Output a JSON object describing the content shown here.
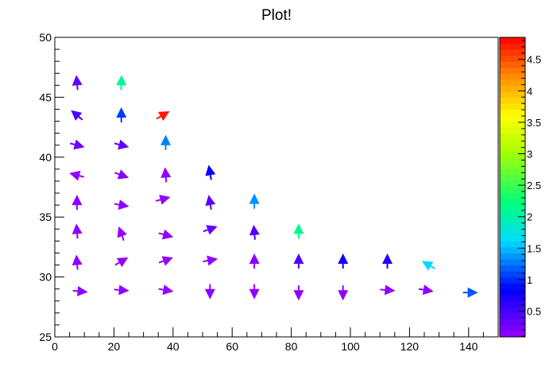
{
  "chart_data": {
    "type": "vector-field",
    "title": "Plot!",
    "xlabel": "",
    "ylabel": "",
    "xlim": [
      0,
      150
    ],
    "ylim": [
      25,
      50
    ],
    "x_ticks": [
      0,
      20,
      40,
      60,
      80,
      100,
      120,
      140
    ],
    "y_ticks": [
      25,
      30,
      35,
      40,
      45,
      50
    ],
    "colorbar": {
      "palette": "rainbow",
      "range": [
        0.09,
        4.85
      ],
      "ticks": [
        0.5,
        1,
        1.5,
        2,
        2.5,
        3,
        3.5,
        4,
        4.5
      ],
      "tick_labels": [
        "0.5",
        "1",
        "1.5",
        "2",
        "2.5",
        "3",
        "3.5",
        "4",
        "4.5"
      ]
    },
    "grid": false,
    "arrows": [
      {
        "x": 7.5,
        "y": 46.2,
        "angle": 95,
        "value": 0.35
      },
      {
        "x": 22.5,
        "y": 46.2,
        "angle": 88,
        "value": 2.1
      },
      {
        "x": 7.5,
        "y": 43.5,
        "angle": 140,
        "value": 0.45
      },
      {
        "x": 22.5,
        "y": 43.5,
        "angle": 90,
        "value": 1.05
      },
      {
        "x": 36.5,
        "y": 43.5,
        "angle": 30,
        "value": 4.75
      },
      {
        "x": 7.5,
        "y": 41.0,
        "angle": -15,
        "value": 0.3
      },
      {
        "x": 22.5,
        "y": 41.0,
        "angle": -15,
        "value": 0.35
      },
      {
        "x": 37.5,
        "y": 41.2,
        "angle": 90,
        "value": 1.3
      },
      {
        "x": 7.5,
        "y": 38.5,
        "angle": 165,
        "value": 0.1
      },
      {
        "x": 22.5,
        "y": 38.5,
        "angle": -20,
        "value": 0.15
      },
      {
        "x": 37.5,
        "y": 38.5,
        "angle": 95,
        "value": 0.12
      },
      {
        "x": 52.5,
        "y": 38.7,
        "angle": 100,
        "value": 0.85
      },
      {
        "x": 7.5,
        "y": 36.2,
        "angle": 90,
        "value": 0.12
      },
      {
        "x": 22.5,
        "y": 36.0,
        "angle": -10,
        "value": 0.12
      },
      {
        "x": 36.5,
        "y": 36.5,
        "angle": 15,
        "value": 0.1
      },
      {
        "x": 52.5,
        "y": 36.2,
        "angle": 100,
        "value": 0.4
      },
      {
        "x": 67.5,
        "y": 36.3,
        "angle": 90,
        "value": 1.35
      },
      {
        "x": 7.5,
        "y": 33.8,
        "angle": 95,
        "value": 0.12
      },
      {
        "x": 22.5,
        "y": 33.6,
        "angle": 110,
        "value": 0.1
      },
      {
        "x": 37.5,
        "y": 33.5,
        "angle": -15,
        "value": 0.12
      },
      {
        "x": 52.5,
        "y": 34.0,
        "angle": 20,
        "value": 0.35
      },
      {
        "x": 67.5,
        "y": 33.7,
        "angle": 95,
        "value": 0.45
      },
      {
        "x": 82.5,
        "y": 33.8,
        "angle": 90,
        "value": 2.15
      },
      {
        "x": 7.5,
        "y": 31.2,
        "angle": 95,
        "value": 0.12
      },
      {
        "x": 22.5,
        "y": 31.3,
        "angle": 30,
        "value": 0.1
      },
      {
        "x": 37.5,
        "y": 31.4,
        "angle": 20,
        "value": 0.1
      },
      {
        "x": 52.5,
        "y": 31.4,
        "angle": 10,
        "value": 0.12
      },
      {
        "x": 67.5,
        "y": 31.3,
        "angle": 90,
        "value": 0.15
      },
      {
        "x": 82.5,
        "y": 31.3,
        "angle": 90,
        "value": 0.45
      },
      {
        "x": 97.5,
        "y": 31.3,
        "angle": 90,
        "value": 0.75
      },
      {
        "x": 112.5,
        "y": 31.3,
        "angle": 90,
        "value": 0.7
      },
      {
        "x": 126.5,
        "y": 31.0,
        "angle": 150,
        "value": 1.6
      },
      {
        "x": 8.5,
        "y": 28.8,
        "angle": -5,
        "value": 0.12
      },
      {
        "x": 22.5,
        "y": 28.9,
        "angle": -5,
        "value": 0.1
      },
      {
        "x": 37.5,
        "y": 28.9,
        "angle": -10,
        "value": 0.1
      },
      {
        "x": 52.5,
        "y": 28.8,
        "angle": -90,
        "value": 0.12
      },
      {
        "x": 67.5,
        "y": 28.8,
        "angle": -90,
        "value": 0.1
      },
      {
        "x": 82.5,
        "y": 28.7,
        "angle": -90,
        "value": 0.12
      },
      {
        "x": 97.5,
        "y": 28.7,
        "angle": -90,
        "value": 0.12
      },
      {
        "x": 112.5,
        "y": 28.9,
        "angle": -5,
        "value": 0.12
      },
      {
        "x": 125.5,
        "y": 28.9,
        "angle": -10,
        "value": 0.12
      },
      {
        "x": 140.5,
        "y": 28.7,
        "angle": 0,
        "value": 1.15
      }
    ]
  }
}
